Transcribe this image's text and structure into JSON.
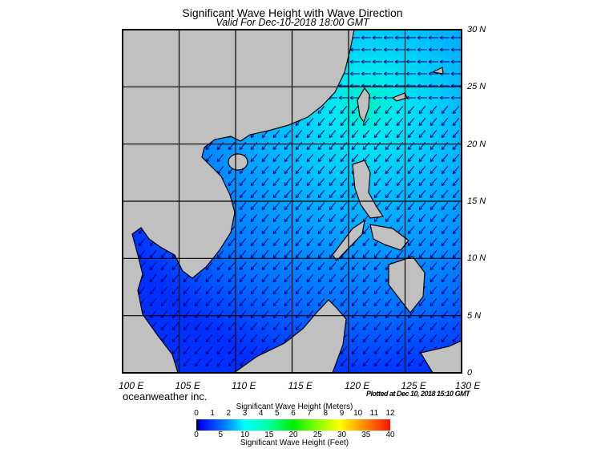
{
  "title": "Significant Wave Height with Wave Direction",
  "subtitle": "Valid For Dec-10-2018 18:00 GMT",
  "map": {
    "lon_range": [
      100,
      130
    ],
    "lat_range": [
      0,
      30
    ],
    "lon_labels": [
      "100 E",
      "105 E",
      "110 E",
      "115 E",
      "120 E",
      "125 E",
      "130 E"
    ],
    "lat_labels": [
      "30 N",
      "25 N",
      "20 N",
      "15 N",
      "10 N",
      "5 N",
      "0"
    ],
    "land_color": "#c0c0c0",
    "arrow_color": "#000080"
  },
  "credit": "oceanweather inc.",
  "plotted": "Plotted at Dec 10, 2018 15:10 GMT",
  "colorbar": {
    "meters_title": "Significant Wave Height (Meters)",
    "feet_title": "Significant Wave Height (Feet)",
    "meters_ticks": [
      "0",
      "1",
      "2",
      "3",
      "4",
      "5",
      "6",
      "7",
      "8",
      "9",
      "10",
      "11",
      "12"
    ],
    "feet_ticks": [
      "0",
      "5",
      "10",
      "15",
      "20",
      "25",
      "30",
      "35",
      "40"
    ],
    "colors": [
      "#000000",
      "#0000ff",
      "#0080ff",
      "#00ffff",
      "#00ff80",
      "#00ff00",
      "#80ff00",
      "#ffff00",
      "#ff8000",
      "#ff0000"
    ]
  }
}
